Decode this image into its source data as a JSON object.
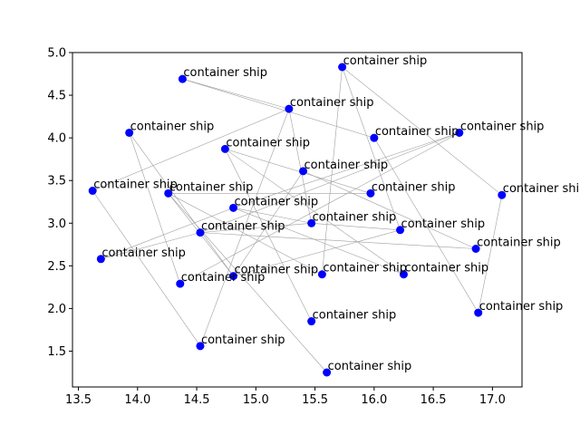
{
  "chart_data": {
    "type": "scatter",
    "title": "",
    "xlabel": "",
    "ylabel": "",
    "xlim": [
      13.45,
      17.25
    ],
    "ylim": [
      1.08,
      5.0
    ],
    "xticks": [
      13.5,
      14.0,
      14.5,
      15.0,
      15.5,
      16.0,
      16.5,
      17.0
    ],
    "xtick_labels": [
      "13.5",
      "14.0",
      "14.5",
      "15.0",
      "15.5",
      "16.0",
      "16.5",
      "17.0"
    ],
    "yticks": [
      1.5,
      2.0,
      2.5,
      3.0,
      3.5,
      4.0,
      4.5,
      5.0
    ],
    "ytick_labels": [
      "1.5",
      "2.0",
      "2.5",
      "3.0",
      "3.5",
      "4.0",
      "4.5",
      "5.0"
    ],
    "grid": false,
    "marker_color": "#0000ff",
    "edge_color": "#a0a0a0",
    "points": [
      {
        "x": 14.38,
        "y": 4.69,
        "label": "container ship"
      },
      {
        "x": 15.73,
        "y": 4.83,
        "label": "container ship"
      },
      {
        "x": 15.28,
        "y": 4.34,
        "label": "container ship"
      },
      {
        "x": 13.93,
        "y": 4.06,
        "label": "container ship"
      },
      {
        "x": 16.0,
        "y": 4.0,
        "label": "container ship"
      },
      {
        "x": 16.72,
        "y": 4.06,
        "label": "container ship"
      },
      {
        "x": 14.74,
        "y": 3.87,
        "label": "container ship"
      },
      {
        "x": 15.4,
        "y": 3.61,
        "label": "container ship"
      },
      {
        "x": 13.62,
        "y": 3.38,
        "label": "container ship"
      },
      {
        "x": 14.26,
        "y": 3.35,
        "label": "container ship"
      },
      {
        "x": 15.97,
        "y": 3.35,
        "label": "container ship"
      },
      {
        "x": 17.08,
        "y": 3.33,
        "label": "container ship"
      },
      {
        "x": 14.81,
        "y": 3.18,
        "label": "container ship"
      },
      {
        "x": 15.47,
        "y": 3.0,
        "label": "container ship"
      },
      {
        "x": 16.22,
        "y": 2.92,
        "label": "container ship"
      },
      {
        "x": 14.53,
        "y": 2.89,
        "label": "container ship"
      },
      {
        "x": 16.86,
        "y": 2.7,
        "label": "container ship"
      },
      {
        "x": 13.69,
        "y": 2.58,
        "label": "container ship"
      },
      {
        "x": 14.81,
        "y": 2.38,
        "label": "container ship"
      },
      {
        "x": 15.56,
        "y": 2.4,
        "label": "container ship"
      },
      {
        "x": 16.25,
        "y": 2.4,
        "label": "container ship"
      },
      {
        "x": 14.36,
        "y": 2.29,
        "label": "container ship"
      },
      {
        "x": 16.88,
        "y": 1.95,
        "label": "container ship"
      },
      {
        "x": 15.47,
        "y": 1.85,
        "label": "container ship"
      },
      {
        "x": 14.53,
        "y": 1.56,
        "label": "container ship"
      },
      {
        "x": 15.6,
        "y": 1.25,
        "label": "container ship"
      }
    ],
    "edges": [
      [
        0,
        2
      ],
      [
        0,
        4
      ],
      [
        1,
        19
      ],
      [
        1,
        11
      ],
      [
        2,
        8
      ],
      [
        2,
        24
      ],
      [
        2,
        13
      ],
      [
        3,
        18
      ],
      [
        4,
        22
      ],
      [
        5,
        12
      ],
      [
        5,
        21
      ],
      [
        6,
        23
      ],
      [
        6,
        20
      ],
      [
        6,
        10
      ],
      [
        7,
        18
      ],
      [
        7,
        16
      ],
      [
        8,
        24
      ],
      [
        9,
        19
      ],
      [
        9,
        10
      ],
      [
        9,
        25
      ],
      [
        11,
        22
      ],
      [
        12,
        17
      ],
      [
        12,
        13
      ],
      [
        12,
        20
      ],
      [
        13,
        14
      ],
      [
        13,
        15
      ],
      [
        14,
        18
      ],
      [
        15,
        16
      ],
      [
        15,
        17
      ],
      [
        15,
        5
      ],
      [
        18,
        9
      ],
      [
        3,
        21
      ],
      [
        14,
        1
      ]
    ]
  }
}
